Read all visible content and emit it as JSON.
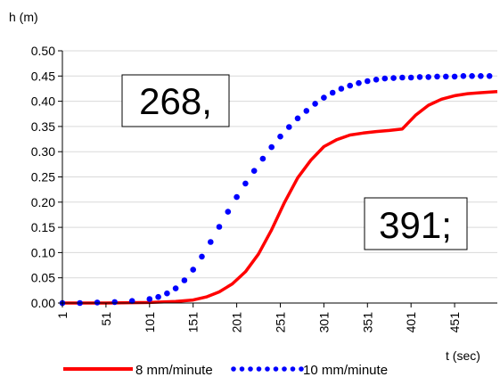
{
  "chart_data": {
    "type": "line",
    "title": "",
    "ylabel": "h (m)",
    "xlabel": "t (sec)",
    "ylim": [
      0,
      0.5
    ],
    "xlim": [
      1,
      500
    ],
    "y_ticks": [
      "0.00",
      "0.05",
      "0.10",
      "0.15",
      "0.20",
      "0.25",
      "0.30",
      "0.35",
      "0.40",
      "0.45",
      "0.50"
    ],
    "x_ticks": [
      "1",
      "51",
      "101",
      "151",
      "201",
      "251",
      "301",
      "351",
      "401",
      "451"
    ],
    "grid": "horizontal",
    "legend_position": "bottom",
    "series": [
      {
        "name": "8 mm/minute",
        "style": "solid",
        "color": "#ff0000",
        "x": [
          1,
          51,
          101,
          131,
          151,
          166,
          181,
          196,
          211,
          226,
          241,
          256,
          271,
          286,
          301,
          316,
          331,
          346,
          361,
          376,
          391,
          406,
          421,
          436,
          451,
          466,
          481,
          500
        ],
        "y": [
          0.0,
          0.0,
          0.001,
          0.003,
          0.006,
          0.012,
          0.022,
          0.038,
          0.062,
          0.097,
          0.145,
          0.2,
          0.248,
          0.283,
          0.31,
          0.324,
          0.333,
          0.337,
          0.34,
          0.342,
          0.345,
          0.372,
          0.392,
          0.404,
          0.411,
          0.415,
          0.417,
          0.419
        ]
      },
      {
        "name": "10 mm/minute",
        "style": "dotted",
        "color": "#0000ff",
        "x": [
          1,
          21,
          41,
          61,
          81,
          101,
          111,
          121,
          131,
          141,
          151,
          161,
          171,
          181,
          191,
          201,
          211,
          221,
          231,
          241,
          251,
          261,
          271,
          281,
          291,
          301,
          311,
          321,
          331,
          341,
          351,
          361,
          371,
          381,
          391,
          401,
          411,
          421,
          431,
          441,
          451,
          461,
          471,
          481,
          491
        ],
        "y": [
          0.0,
          0.0,
          0.001,
          0.002,
          0.004,
          0.008,
          0.012,
          0.019,
          0.029,
          0.045,
          0.066,
          0.092,
          0.121,
          0.151,
          0.181,
          0.21,
          0.237,
          0.262,
          0.286,
          0.309,
          0.33,
          0.349,
          0.366,
          0.381,
          0.395,
          0.407,
          0.417,
          0.425,
          0.431,
          0.436,
          0.44,
          0.443,
          0.445,
          0.446,
          0.447,
          0.447,
          0.448,
          0.448,
          0.449,
          0.449,
          0.449,
          0.45,
          0.45,
          0.45,
          0.45
        ]
      }
    ],
    "annotations": [
      "268,",
      "391;"
    ]
  }
}
